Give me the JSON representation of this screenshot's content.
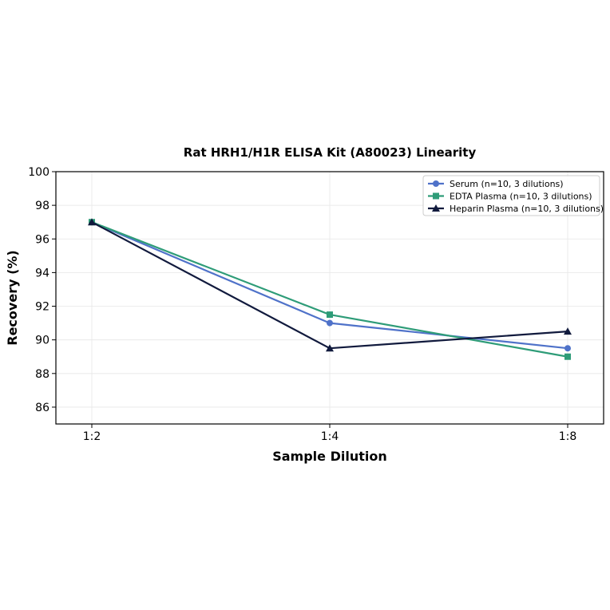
{
  "chart_data": {
    "type": "line",
    "title": "Rat HRH1/H1R ELISA Kit (A80023) Linearity",
    "xlabel": "Sample Dilution",
    "ylabel": "Recovery (%)",
    "categories": [
      "1:2",
      "1:4",
      "1:8"
    ],
    "ylim": [
      85,
      100
    ],
    "yticks": [
      86,
      88,
      90,
      92,
      94,
      96,
      98,
      100
    ],
    "grid": true,
    "legend_position": "top-right",
    "series": [
      {
        "name": "Serum (n=10, 3 dilutions)",
        "values": [
          97.0,
          91.0,
          89.5
        ],
        "color": "#4f72c9",
        "marker": "circle"
      },
      {
        "name": "EDTA Plasma (n=10, 3 dilutions)",
        "values": [
          97.0,
          91.5,
          89.0
        ],
        "color": "#2e9c78",
        "marker": "square"
      },
      {
        "name": "Heparin Plasma (n=10, 3 dilutions)",
        "values": [
          97.0,
          89.5,
          90.5
        ],
        "color": "#111a3d",
        "marker": "triangle"
      }
    ]
  }
}
